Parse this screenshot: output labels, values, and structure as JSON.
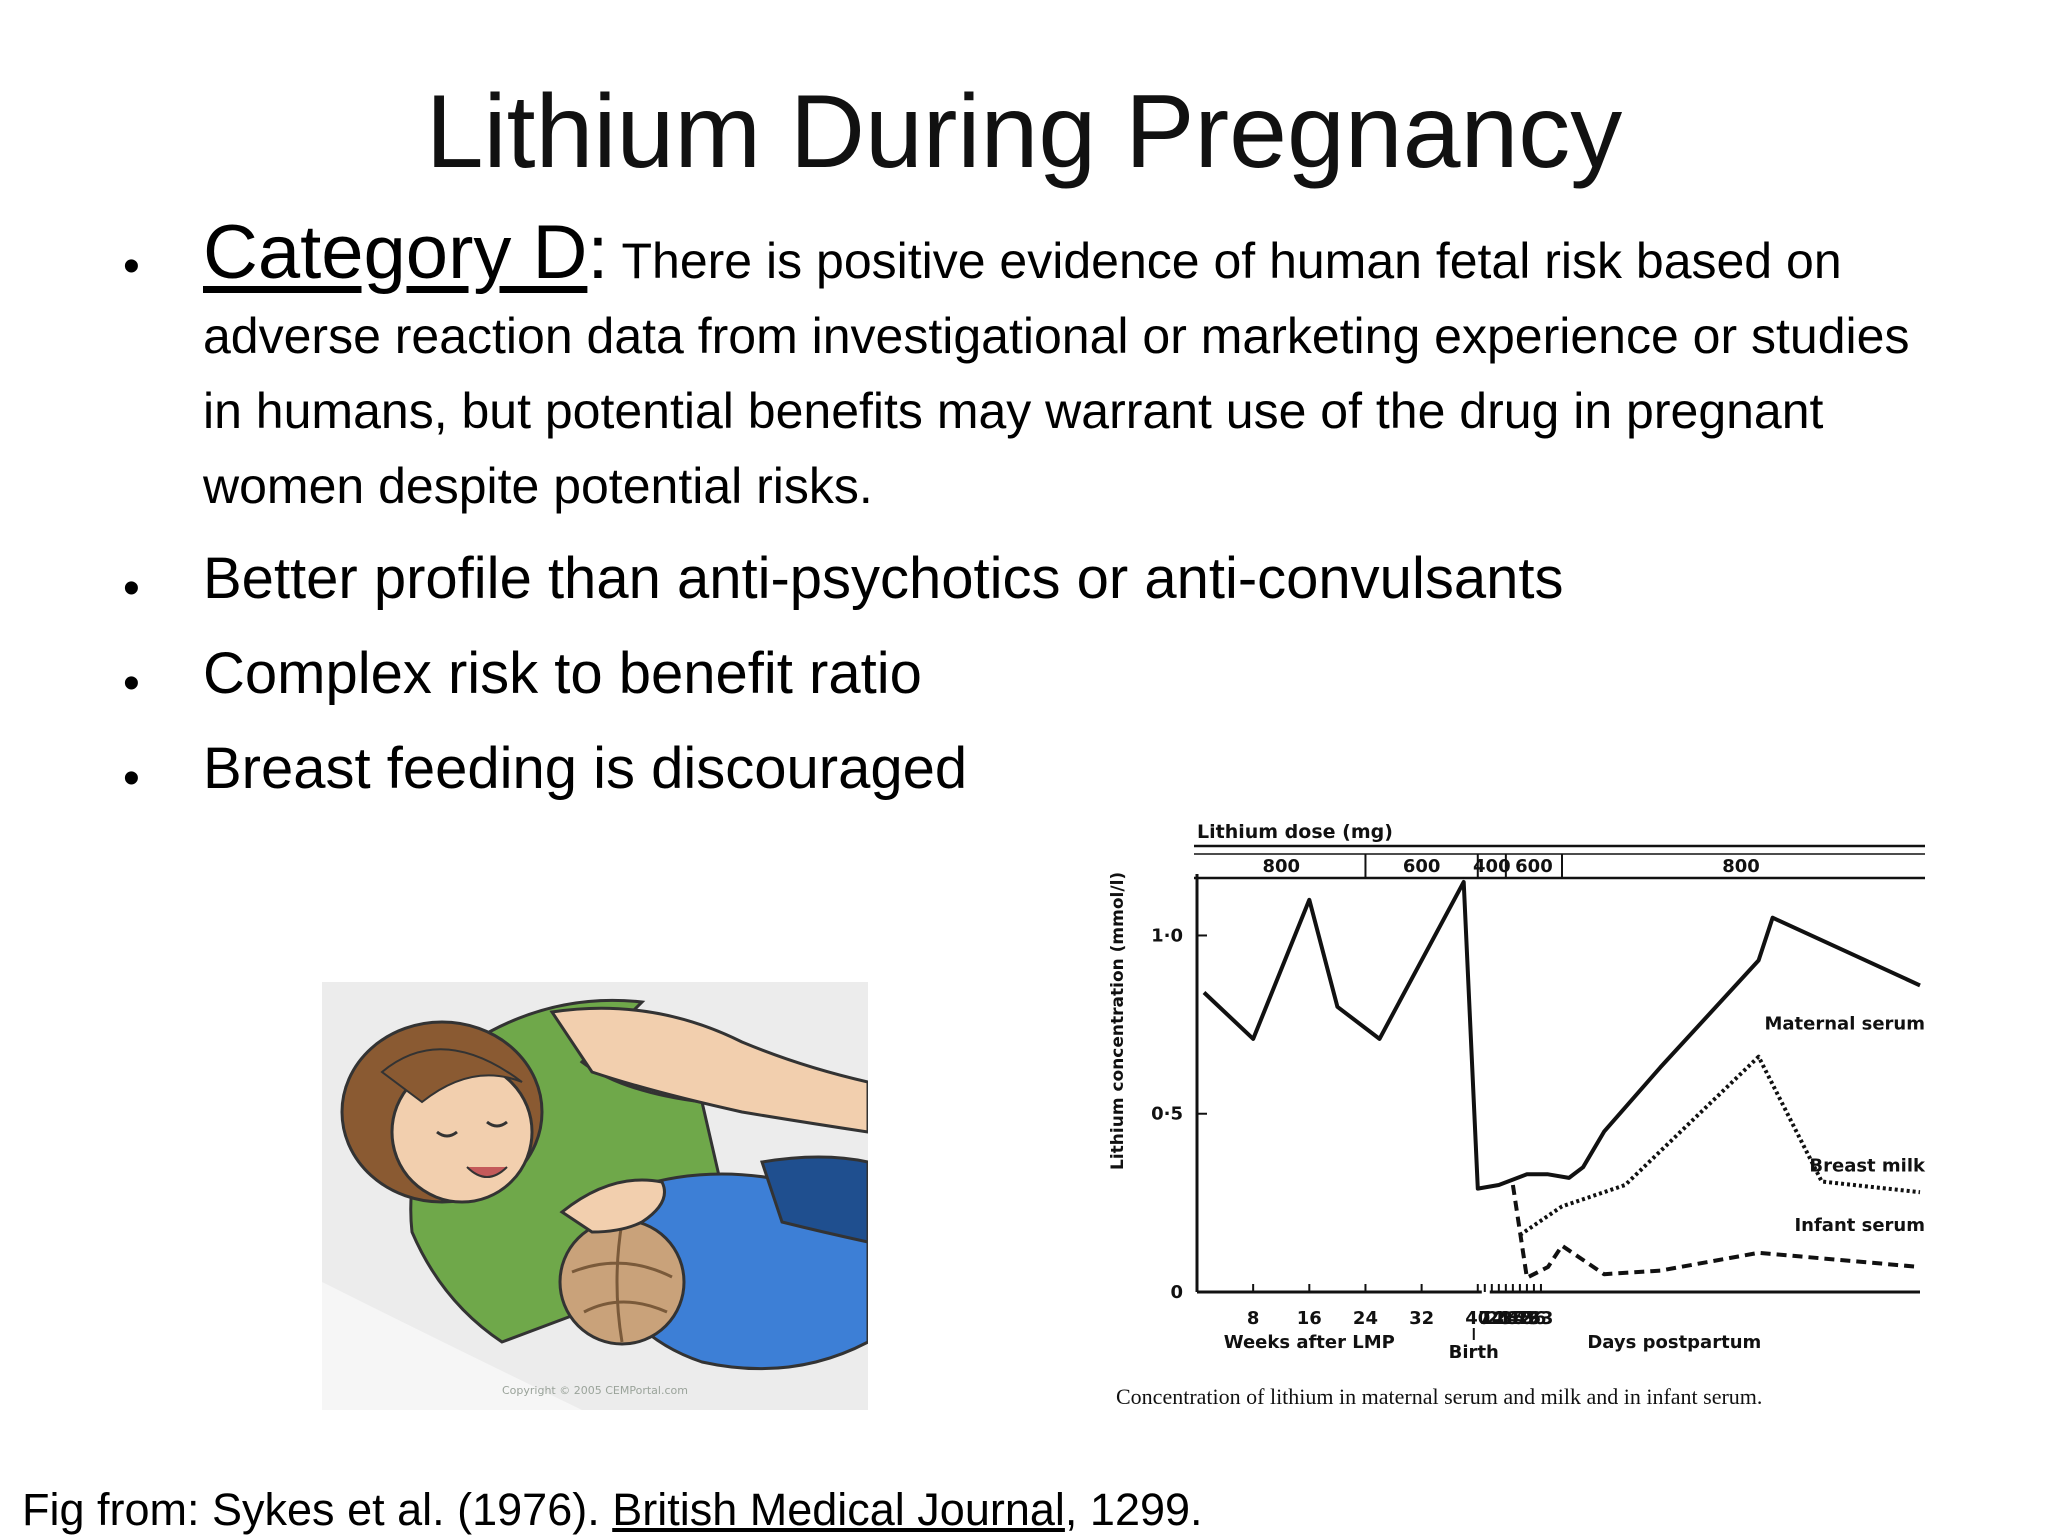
{
  "slide": {
    "title": "Lithium During Pregnancy",
    "bullets": [
      {
        "lead": "Category D",
        "colon": ":",
        "text": " There is positive evidence of human fetal risk based on adverse reaction data from investigational or marketing experience or studies in humans, but potential benefits may warrant use of the drug in pregnant women despite potential risks."
      },
      {
        "text": "Better profile than anti-psychotics or anti-convulsants"
      },
      {
        "text": "Complex risk to benefit ratio"
      },
      {
        "text": "Breast feeding is discouraged"
      }
    ],
    "bullet_symbol": "•",
    "source": {
      "prefix": "Fig from: Sykes et al. (1976). ",
      "journal": "British Medical Journal",
      "suffix": ", 1299."
    },
    "illustration": {
      "icon": "breastfeeding-illustration",
      "watermark": "Copyright © 2005 CEMPortal.com"
    }
  },
  "chart_data": {
    "type": "line",
    "title": "",
    "caption": "Concentration of lithium in maternal serum and milk and in infant serum.",
    "ylabel": "Lithium concentration (mmol/l)",
    "ylim": [
      0,
      1.15
    ],
    "y_ticks": [
      "0",
      "0·5",
      "1·0"
    ],
    "x_segments": [
      {
        "label": "Weeks after LMP",
        "ticks": [
          "8",
          "16",
          "24",
          "32",
          "40"
        ]
      },
      {
        "label": "Days postpartum",
        "ticks": [
          "7",
          "14",
          "21",
          "28",
          "35",
          "42",
          "49",
          "56",
          "63"
        ]
      }
    ],
    "birth_label": "Birth",
    "dose_header": "Lithium dose (mg)",
    "dose_schedule": [
      {
        "label": "800",
        "from": 0,
        "to": 24
      },
      {
        "label": "600",
        "from": 24,
        "to": 40
      },
      {
        "label": "400",
        "from": 40,
        "to": 44
      },
      {
        "label": "600",
        "from": 44,
        "to": 52
      },
      {
        "label": "800",
        "from": 52,
        "to": 103
      }
    ],
    "series": [
      {
        "name": "Maternal serum",
        "style": "solid",
        "points": [
          [
            1,
            0.84
          ],
          [
            8,
            0.71
          ],
          [
            16,
            1.1
          ],
          [
            20,
            0.8
          ],
          [
            26,
            0.71
          ],
          [
            38,
            1.15
          ],
          [
            40,
            0.29
          ],
          [
            43,
            0.3
          ],
          [
            47,
            0.33
          ],
          [
            50,
            0.33
          ],
          [
            53,
            0.32
          ],
          [
            55,
            0.35
          ],
          [
            58,
            0.45
          ],
          [
            66,
            0.63
          ],
          [
            80,
            0.93
          ],
          [
            82,
            1.05
          ],
          [
            103,
            0.86
          ]
        ]
      },
      {
        "name": "Breast milk",
        "style": "dotted",
        "points": [
          [
            46,
            0.16
          ],
          [
            52,
            0.24
          ],
          [
            61,
            0.3
          ],
          [
            80,
            0.66
          ],
          [
            89,
            0.31
          ],
          [
            103,
            0.28
          ]
        ]
      },
      {
        "name": "Infant serum",
        "style": "dashed",
        "points": [
          [
            45,
            0.3
          ],
          [
            47,
            0.04
          ],
          [
            50,
            0.07
          ],
          [
            52,
            0.13
          ],
          [
            58,
            0.05
          ],
          [
            66,
            0.06
          ],
          [
            80,
            0.11
          ],
          [
            103,
            0.07
          ]
        ]
      }
    ],
    "x_axis_note": "x in weeks after LMP; postpartum days are converted to weeks after LMP (40 + days/7)"
  }
}
